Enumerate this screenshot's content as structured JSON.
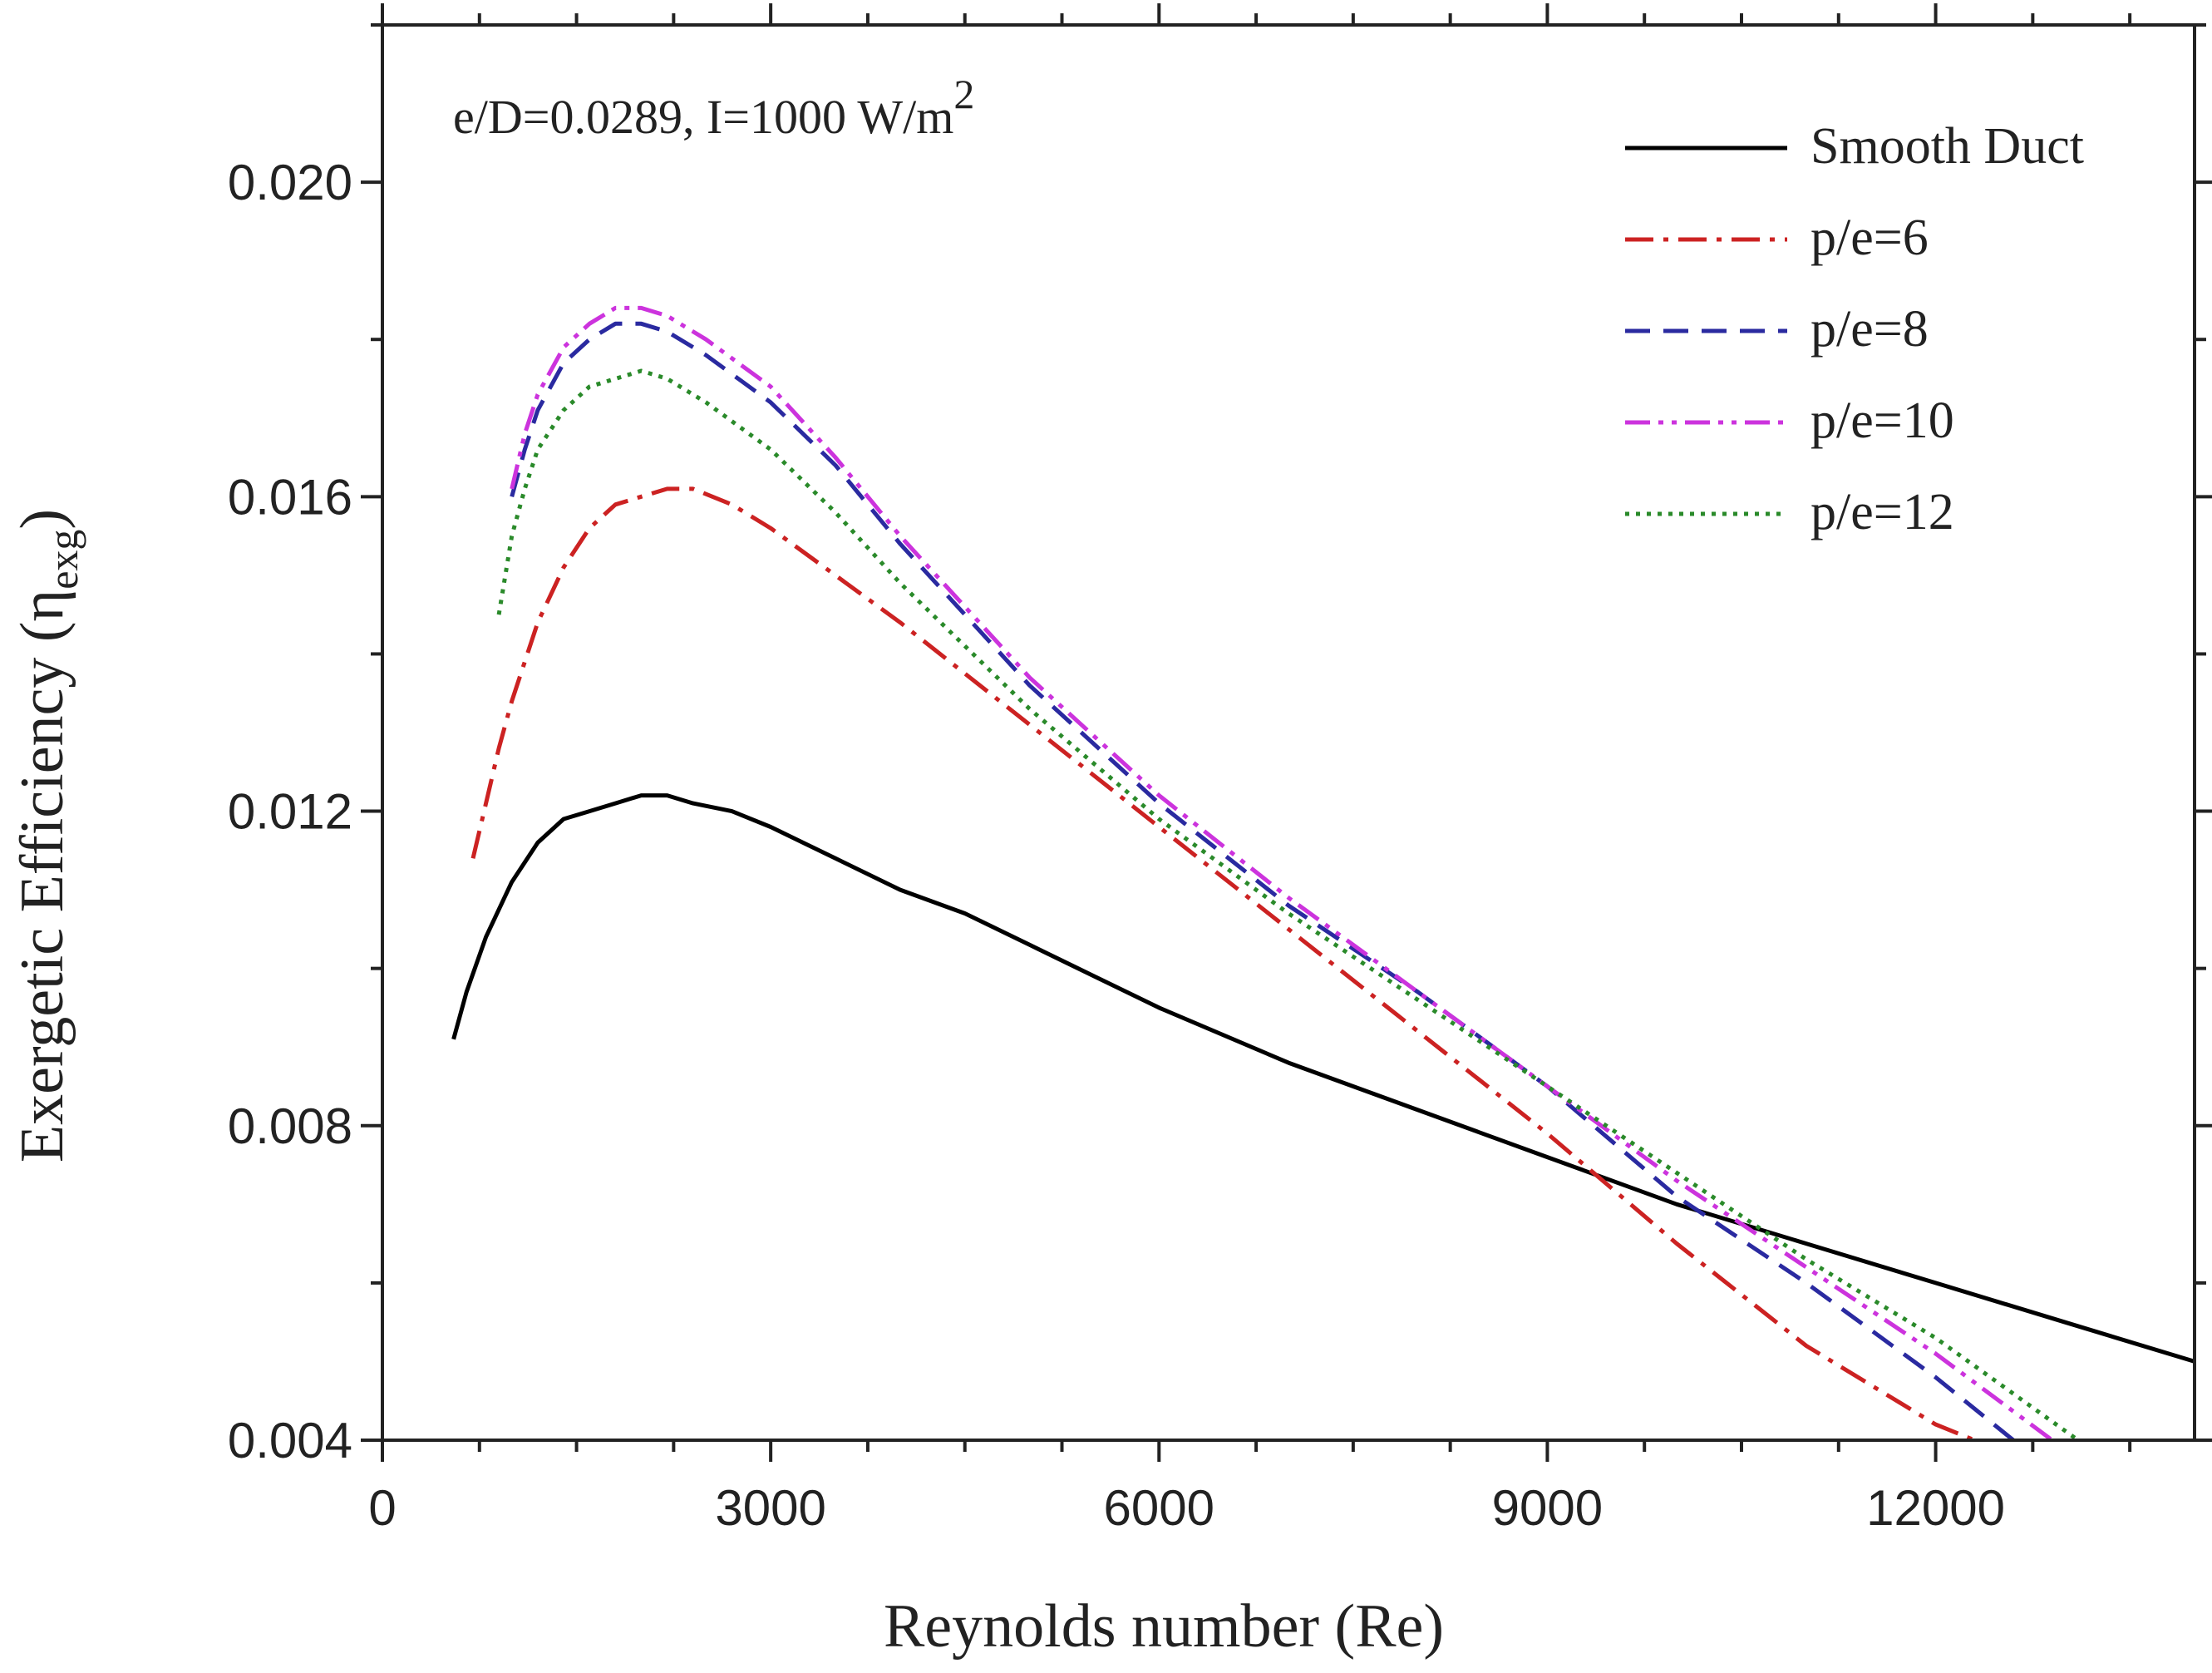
{
  "chart_data": {
    "type": "line",
    "title": "",
    "xlabel": "Reynolds number (Re)",
    "ylabel_main": "Exergetic Efficiency (η",
    "ylabel_sub": "exg",
    "ylabel_close": ")",
    "xlim": [
      0,
      14000
    ],
    "ylim": [
      0.004,
      0.022
    ],
    "xticks": [
      0,
      3000,
      6000,
      9000,
      12000
    ],
    "xtick_labels": [
      "0",
      "3000",
      "6000",
      "9000",
      "12000"
    ],
    "yticks": [
      0.004,
      0.008,
      0.012,
      0.016,
      0.02
    ],
    "ytick_labels": [
      "0.004",
      "0.008",
      "0.012",
      "0.016",
      "0.020"
    ],
    "annotation_main": "e/D=0.0289, I=1000 W/m",
    "annotation_sup": "2",
    "legend_position": "top-right",
    "series": [
      {
        "name": "Smooth Duct",
        "color": "#000000",
        "dash": "solid",
        "x": [
          550,
          650,
          800,
          1000,
          1200,
          1400,
          1600,
          1800,
          2000,
          2200,
          2400,
          2700,
          3000,
          3500,
          4000,
          4500,
          5000,
          5500,
          6000,
          7000,
          8000,
          9000,
          10000,
          11000,
          12000,
          13000,
          14000
        ],
        "y": [
          0.0091,
          0.0097,
          0.0104,
          0.0111,
          0.0116,
          0.0119,
          0.012,
          0.0121,
          0.0122,
          0.0122,
          0.0121,
          0.012,
          0.0118,
          0.0114,
          0.011,
          0.0107,
          0.0103,
          0.0099,
          0.0095,
          0.0088,
          0.0082,
          0.0076,
          0.007,
          0.0065,
          0.006,
          0.0055,
          0.005
        ]
      },
      {
        "name": "p/e=6",
        "color": "#cc2222",
        "dash": "dashdot",
        "x": [
          700,
          800,
          900,
          1000,
          1200,
          1400,
          1600,
          1800,
          2000,
          2200,
          2400,
          2700,
          3000,
          3500,
          4000,
          5000,
          6000,
          7000,
          8000,
          9000,
          10000,
          11000,
          12000,
          12300
        ],
        "y": [
          0.0114,
          0.0121,
          0.0128,
          0.0134,
          0.0144,
          0.0151,
          0.0156,
          0.0159,
          0.016,
          0.0161,
          0.0161,
          0.0159,
          0.0156,
          0.015,
          0.0144,
          0.0131,
          0.0118,
          0.0105,
          0.0092,
          0.0079,
          0.0065,
          0.0052,
          0.0042,
          0.004
        ]
      },
      {
        "name": "p/e=8",
        "color": "#2a2aa0",
        "dash": "dashed",
        "x": [
          1000,
          1100,
          1200,
          1400,
          1600,
          1800,
          2000,
          2200,
          2500,
          3000,
          3500,
          4000,
          5000,
          6000,
          7000,
          8000,
          9000,
          10000,
          11000,
          12000,
          12600
        ],
        "y": [
          0.016,
          0.0166,
          0.0171,
          0.0177,
          0.018,
          0.0182,
          0.0182,
          0.0181,
          0.0178,
          0.0172,
          0.0164,
          0.0154,
          0.0136,
          0.0121,
          0.0108,
          0.0097,
          0.0085,
          0.0071,
          0.006,
          0.0048,
          0.004
        ]
      },
      {
        "name": "p/e=10",
        "color": "#cc33dd",
        "dash": "dashdotdot",
        "x": [
          1000,
          1100,
          1200,
          1400,
          1600,
          1800,
          2000,
          2200,
          2500,
          3000,
          3500,
          4000,
          5000,
          6000,
          7000,
          8000,
          9000,
          10000,
          11000,
          12000,
          12900
        ],
        "y": [
          0.0161,
          0.0168,
          0.0173,
          0.0179,
          0.0182,
          0.0184,
          0.0184,
          0.0183,
          0.018,
          0.0174,
          0.0165,
          0.0155,
          0.0137,
          0.0122,
          0.0109,
          0.0097,
          0.0085,
          0.0073,
          0.0062,
          0.0051,
          0.004
        ]
      },
      {
        "name": "p/e=12",
        "color": "#2a8a2a",
        "dash": "dotted",
        "x": [
          900,
          1000,
          1100,
          1200,
          1400,
          1600,
          1800,
          2000,
          2200,
          2500,
          3000,
          3500,
          4000,
          5000,
          6000,
          7000,
          8000,
          9000,
          10000,
          11000,
          12000,
          13100
        ],
        "y": [
          0.0145,
          0.0155,
          0.0161,
          0.0166,
          0.0171,
          0.0174,
          0.0175,
          0.0176,
          0.0175,
          0.0172,
          0.0166,
          0.0158,
          0.0149,
          0.0133,
          0.0119,
          0.0107,
          0.0096,
          0.0085,
          0.0074,
          0.0063,
          0.0053,
          0.004
        ]
      }
    ]
  }
}
